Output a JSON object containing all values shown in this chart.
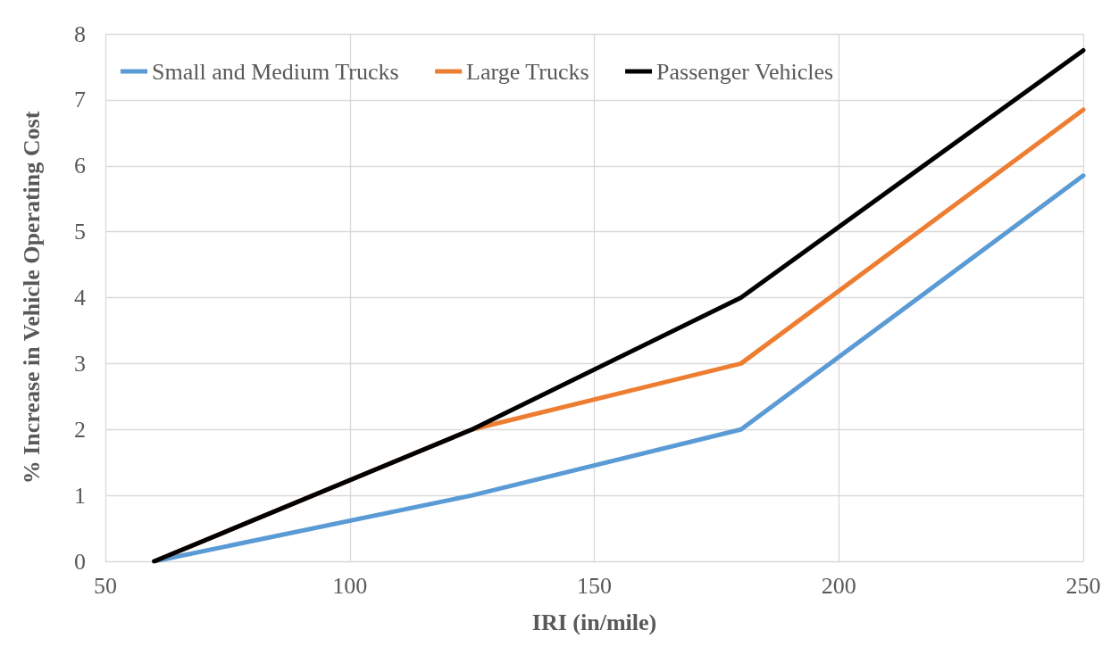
{
  "chart_data": {
    "type": "line",
    "xlabel": "IRI (in/mile)",
    "ylabel": "% Increase in Vehicle Operating Cost",
    "x": [
      60,
      125,
      180,
      250
    ],
    "series": [
      {
        "name": "Small and Medium Trucks",
        "color": "#5b9bd5",
        "values": [
          0,
          1,
          2,
          5.85
        ]
      },
      {
        "name": "Large Trucks",
        "color": "#ed7d31",
        "values": [
          0,
          2,
          3,
          6.85
        ]
      },
      {
        "name": "Passenger Vehicles",
        "color": "#000000",
        "values": [
          0,
          2,
          4,
          7.75
        ]
      }
    ],
    "xlim": [
      50,
      250
    ],
    "xticks": [
      50,
      100,
      150,
      200,
      250
    ],
    "ylim": [
      0,
      8
    ],
    "yticks": [
      0,
      1,
      2,
      3,
      4,
      5,
      6,
      7,
      8
    ],
    "grid": true,
    "legend": "top",
    "marker": "none",
    "line_style": "solid"
  }
}
